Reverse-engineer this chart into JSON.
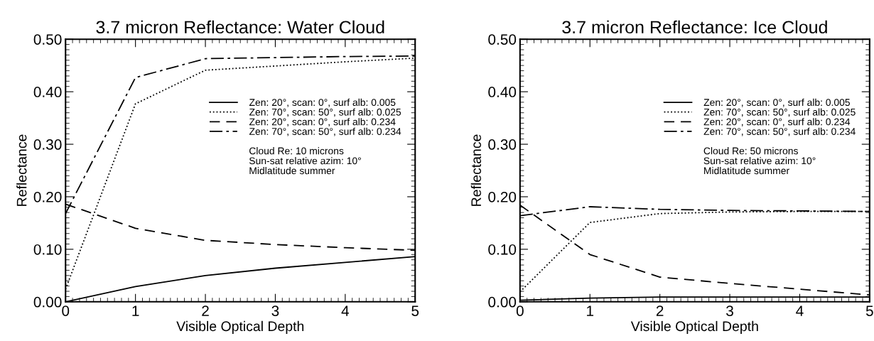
{
  "chart_data": [
    {
      "type": "line",
      "title": "3.7 micron Reflectance: Water Cloud",
      "xlabel": "Visible Optical Depth",
      "ylabel": "Reflectance",
      "x": [
        0,
        1,
        2,
        3,
        4,
        5
      ],
      "xlim": [
        0,
        5
      ],
      "xticks": [
        0,
        1,
        2,
        3,
        4,
        5
      ],
      "ylim": [
        0,
        0.5
      ],
      "yticks": [
        {
          "value": 0,
          "label": "0.00"
        },
        {
          "value": 0.1,
          "label": "0.10"
        },
        {
          "value": 0.2,
          "label": "0.20"
        },
        {
          "value": 0.3,
          "label": "0.30"
        },
        {
          "value": 0.4,
          "label": "0.40"
        },
        {
          "value": 0.5,
          "label": "0.50"
        }
      ],
      "grid": false,
      "legend": "top right",
      "marker": "none",
      "annotations": [
        "Cloud Re: 10 microns",
        "Sun-sat relative azim: 10°",
        "Midlatitude summer"
      ],
      "series": [
        {
          "name": "Zen: 20°, scan: 0°, surf alb: 0.005",
          "color": "#000000",
          "line_style": "solid",
          "values": [
            0.0,
            0.029,
            0.05,
            0.064,
            0.075,
            0.086
          ]
        },
        {
          "name": "Zen: 70°, scan: 50°, surf alb: 0.025",
          "color": "#000000",
          "line_style": "dotted",
          "values": [
            0.024,
            0.377,
            0.441,
            0.449,
            0.457,
            0.464
          ]
        },
        {
          "name": "Zen: 20°, scan: 0°, surf alb: 0.234",
          "color": "#000000",
          "line_style": "dashed",
          "values": [
            0.186,
            0.14,
            0.117,
            0.109,
            0.103,
            0.098
          ]
        },
        {
          "name": "Zen: 70°, scan: 50°, surf alb: 0.234",
          "color": "#000000",
          "line_style": "dashdot",
          "values": [
            0.168,
            0.427,
            0.463,
            0.465,
            0.467,
            0.468
          ]
        }
      ]
    },
    {
      "type": "line",
      "title": "3.7 micron Reflectance: Ice Cloud",
      "xlabel": "Visible Optical Depth",
      "ylabel": "Reflectance",
      "x": [
        0,
        1,
        2,
        3,
        4,
        5
      ],
      "xlim": [
        0,
        5
      ],
      "xticks": [
        0,
        1,
        2,
        3,
        4,
        5
      ],
      "ylim": [
        0,
        0.5
      ],
      "yticks": [
        {
          "value": 0,
          "label": "0.00"
        },
        {
          "value": 0.1,
          "label": "0.10"
        },
        {
          "value": 0.2,
          "label": "0.20"
        },
        {
          "value": 0.3,
          "label": "0.30"
        },
        {
          "value": 0.4,
          "label": "0.40"
        },
        {
          "value": 0.5,
          "label": "0.50"
        }
      ],
      "grid": false,
      "legend": "top right",
      "marker": "none",
      "annotations": [
        "Cloud Re: 50 microns",
        "Sun-sat relative azim: 10°",
        "Midlatitude summer"
      ],
      "series": [
        {
          "name": "Zen: 20°, scan: 0°, surf alb: 0.005",
          "color": "#000000",
          "line_style": "solid",
          "values": [
            0.003,
            0.007,
            0.009,
            0.009,
            0.009,
            0.009
          ]
        },
        {
          "name": "Zen: 70°, scan: 50°, surf alb: 0.025",
          "color": "#000000",
          "line_style": "dotted",
          "values": [
            0.019,
            0.151,
            0.168,
            0.171,
            0.172,
            0.172
          ]
        },
        {
          "name": "Zen: 20°, scan: 0°, surf alb: 0.234",
          "color": "#000000",
          "line_style": "dashed",
          "values": [
            0.184,
            0.09,
            0.047,
            0.035,
            0.024,
            0.013
          ]
        },
        {
          "name": "Zen: 70°, scan: 50°, surf alb: 0.234",
          "color": "#000000",
          "line_style": "dashdot",
          "values": [
            0.164,
            0.181,
            0.176,
            0.174,
            0.173,
            0.172
          ]
        }
      ]
    }
  ]
}
